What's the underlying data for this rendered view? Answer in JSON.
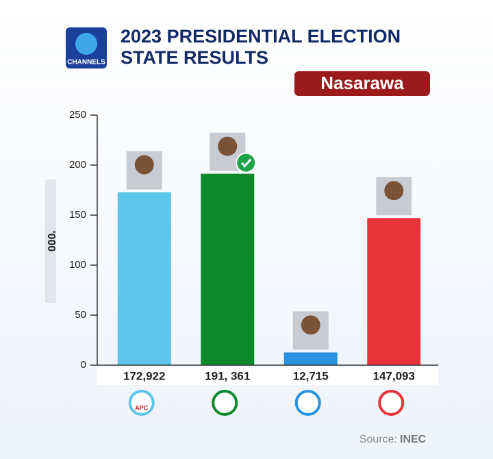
{
  "chart_data": {
    "type": "bar",
    "logo": "CHANNELS",
    "title_lines": [
      "2023 PRESIDENTIAL ELECTION",
      "STATE RESULTS"
    ],
    "state": "Nasarawa",
    "y_label": "'000",
    "categories": [
      null,
      null,
      null,
      null
    ],
    "values": [
      172.922,
      191.361,
      12.715,
      147.093
    ],
    "value_labels": [
      "172,922",
      "191, 361",
      "12,715",
      "147,093"
    ],
    "colors": [
      "#5ec6ea",
      "#0c8a2b",
      "#2a93e0",
      "#e8333a"
    ],
    "party_logo_texts": [
      "APC"
    ],
    "ylim": [
      0,
      250
    ],
    "yticks": [
      0,
      50,
      100,
      150,
      200,
      250
    ],
    "source_label": "Source:",
    "source": "INEC"
  }
}
